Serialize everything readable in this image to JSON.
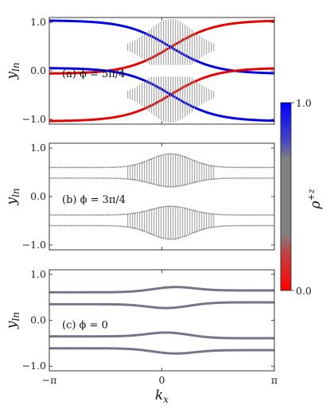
{
  "chart_data": [
    {
      "type": "scatter",
      "panel_label": "(a) ϕ = 5π/4",
      "ylabel": "y",
      "ylabel_sub": "ln",
      "xlim": [
        -3.14159,
        3.14159
      ],
      "ylim": [
        -1.1,
        1.1
      ],
      "x_ticks": [],
      "y_ticks": [
        {
          "value": 1.0,
          "label": "1.0"
        },
        {
          "value": 0.0,
          "label": "0.0"
        },
        {
          "value": -1.0,
          "label": "−1.0"
        }
      ],
      "bands": [
        {
          "edge": 0.59,
          "coupling": 0.22,
          "far": 0.59,
          "kind": "upper"
        },
        {
          "edge": 0.39,
          "coupling": 0.22,
          "far": 0.39,
          "kind": "lower"
        },
        {
          "edge": -0.39,
          "coupling": 0.22,
          "far": -0.39,
          "kind": "upper"
        },
        {
          "edge": -0.59,
          "coupling": 0.22,
          "far": -0.59,
          "kind": "lower"
        }
      ],
      "color_mode": "polarized",
      "crossing_kx": 0.25
    },
    {
      "type": "scatter",
      "panel_label": "(b) ϕ = 3π/4",
      "ylabel": "y",
      "ylabel_sub": "ln",
      "xlim": [
        -3.14159,
        3.14159
      ],
      "ylim": [
        -1.1,
        1.1
      ],
      "x_ticks": [],
      "y_ticks": [
        {
          "value": 1.0,
          "label": "1.0"
        },
        {
          "value": 0.0,
          "label": "0.0"
        },
        {
          "value": -1.0,
          "label": "−1.0"
        }
      ],
      "bands": [
        {
          "far": 0.6,
          "peak": 0.88,
          "kind": "upper"
        },
        {
          "far": 0.38,
          "peak": 0.2,
          "kind": "lower"
        },
        {
          "far": -0.38,
          "peak": -0.2,
          "kind": "upper"
        },
        {
          "far": -0.6,
          "peak": -0.88,
          "kind": "lower"
        }
      ],
      "color_mode": "gray",
      "crossing_kx": 0.25
    },
    {
      "type": "scatter",
      "panel_label": "(c) ϕ = 0",
      "ylabel": "y",
      "ylabel_sub": "ln",
      "xlim": [
        -3.14159,
        3.14159
      ],
      "ylim": [
        -1.1,
        1.1
      ],
      "x_ticks": [
        {
          "value": -3.14159,
          "label": "−π"
        },
        {
          "value": 0,
          "label": "0"
        },
        {
          "value": 3.14159,
          "label": "π"
        }
      ],
      "xlabel": "k",
      "xlabel_sub": "x",
      "y_ticks": [
        {
          "value": 1.0,
          "label": "1.0"
        },
        {
          "value": 0.0,
          "label": "0.0"
        },
        {
          "value": -1.0,
          "label": "−1.0"
        }
      ],
      "bands": [
        {
          "far": 0.63,
          "peak": 0.72
        },
        {
          "far": 0.37,
          "peak": 0.27
        },
        {
          "far": -0.37,
          "peak": -0.27
        },
        {
          "far": -0.63,
          "peak": -0.72
        }
      ],
      "color_mode": "mixed",
      "crossing_kx": 0.25
    }
  ],
  "colorbar": {
    "label": "ρ",
    "label_sup": "+z",
    "min_label": "0.0",
    "max_label": "1.0",
    "colors": [
      "#ff0000",
      "#808080",
      "#0000ff"
    ]
  }
}
